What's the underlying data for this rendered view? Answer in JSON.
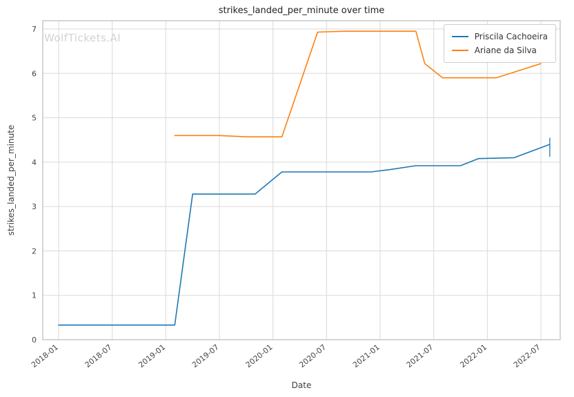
{
  "title": "strikes_landed_per_minute over time",
  "watermark": "WolfTickets.AI",
  "colors": {
    "grid": "#d9d9d9",
    "axis_border": "#bababa",
    "tick_text": "#444444",
    "title_text": "#222222",
    "watermark": "#d2d2d2",
    "series_blue": "#1f77b4",
    "series_orange": "#ff7f0e"
  },
  "chart_data": {
    "type": "line",
    "title": "strikes_landed_per_minute over time",
    "xlabel": "Date",
    "ylabel": "strikes_landed_per_minute",
    "x_ticks": [
      "2018-01",
      "2018-07",
      "2019-01",
      "2019-07",
      "2020-01",
      "2020-07",
      "2021-01",
      "2021-07",
      "2022-01",
      "2022-07"
    ],
    "y_ticks": [
      0,
      1,
      2,
      3,
      4,
      5,
      6,
      7
    ],
    "ylim": [
      0,
      7.19
    ],
    "grid": true,
    "legend_position": "upper right",
    "series": [
      {
        "name": "Priscila Cachoeira",
        "color": "#1f77b4",
        "points": [
          {
            "x": "2018-01",
            "y": 0.33
          },
          {
            "x": "2019-02",
            "y": 0.33
          },
          {
            "x": "2019-04",
            "y": 3.28
          },
          {
            "x": "2019-11",
            "y": 3.28
          },
          {
            "x": "2020-02",
            "y": 3.78
          },
          {
            "x": "2020-12",
            "y": 3.78
          },
          {
            "x": "2021-02",
            "y": 3.83
          },
          {
            "x": "2021-05",
            "y": 3.92
          },
          {
            "x": "2021-10",
            "y": 3.92
          },
          {
            "x": "2021-12",
            "y": 4.08
          },
          {
            "x": "2022-04",
            "y": 4.1
          },
          {
            "x": "2022-08",
            "y": 4.4
          }
        ],
        "error_bar": {
          "x": "2022-08",
          "y_low": 4.12,
          "y_high": 4.55
        }
      },
      {
        "name": "Ariane da Silva",
        "color": "#ff7f0e",
        "points": [
          {
            "x": "2019-02",
            "y": 4.6
          },
          {
            "x": "2019-07",
            "y": 4.6
          },
          {
            "x": "2019-10",
            "y": 4.57
          },
          {
            "x": "2020-02",
            "y": 4.57
          },
          {
            "x": "2020-06",
            "y": 6.93
          },
          {
            "x": "2020-09",
            "y": 6.95
          },
          {
            "x": "2021-05",
            "y": 6.95
          },
          {
            "x": "2021-06",
            "y": 6.22
          },
          {
            "x": "2021-08",
            "y": 5.9
          },
          {
            "x": "2022-02",
            "y": 5.9
          },
          {
            "x": "2022-07",
            "y": 6.22
          }
        ]
      }
    ]
  }
}
